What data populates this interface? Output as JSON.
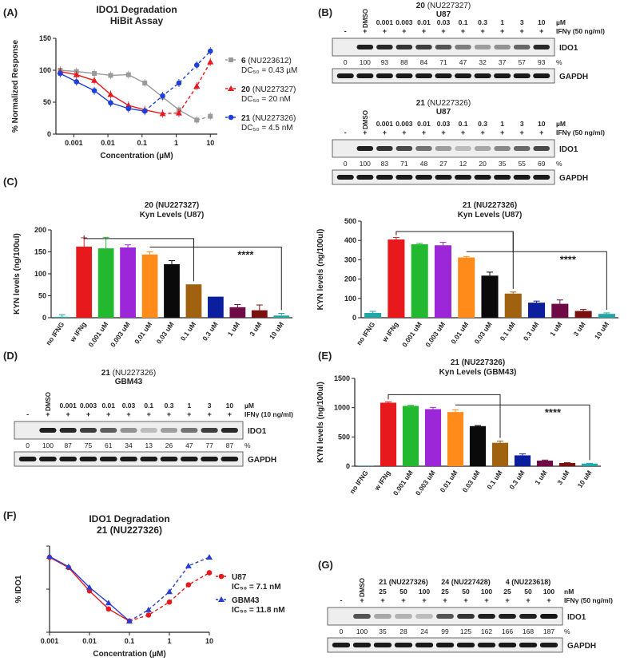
{
  "panel_labels": {
    "A": "(A)",
    "B": "(B)",
    "C": "(C)",
    "D": "(D)",
    "E": "(E)",
    "F": "(F)",
    "G": "(G)"
  },
  "colors": {
    "red": "#e8191d",
    "green": "#22b830",
    "purple": "#9c27d8",
    "orange": "#ff8c1a",
    "black": "#0a0a0a",
    "brown": "#a0620f",
    "navy": "#0b1f9e",
    "maroon": "#6e0a45",
    "darkred": "#7b1010",
    "teal": "#22a6a6",
    "grey": "#9a9a9a",
    "blue": "#1f3fd6",
    "tri_blue": "#2a3fd0",
    "red_num": "#e02020"
  },
  "chart_data": [
    {
      "id": "A",
      "type": "line",
      "title": "IDO1 Degradation",
      "subtitle": "HiBit Assay",
      "xlabel": "Concentration (µM)",
      "ylabel": "% Normalized Response",
      "xscale": "log",
      "xlim": [
        0.0003,
        16
      ],
      "ylim": [
        0,
        150
      ],
      "xticks": [
        "0.001",
        "0.01",
        "0.1",
        "1",
        "10"
      ],
      "yticks": [
        "0",
        "50",
        "100",
        "150"
      ],
      "series": [
        {
          "name": "6",
          "code": "(NU223612)",
          "dc50": "DC₅₀ = 0.43 µM",
          "color": "#9a9a9a",
          "marker": "square",
          "x": [
            0.0004,
            0.0012,
            0.004,
            0.012,
            0.04,
            0.12,
            0.4,
            1.2,
            4,
            10
          ],
          "y": [
            100,
            98,
            95,
            92,
            93,
            80,
            58,
            38,
            22,
            28
          ]
        },
        {
          "name": "20",
          "code": "(NU227327)",
          "dc50": "DC₅₀ = 20 nM",
          "color": "#e8191d",
          "marker": "triangle",
          "x": [
            0.0004,
            0.0012,
            0.004,
            0.012,
            0.04,
            0.12,
            0.4,
            1.2,
            4,
            10
          ],
          "y": [
            98,
            93,
            84,
            62,
            45,
            38,
            32,
            33,
            75,
            113
          ]
        },
        {
          "name": "21",
          "code": "(NU227326)",
          "dc50": "DC₅₀ = 4.5 nM",
          "color": "#1f3fd6",
          "marker": "circle",
          "x": [
            0.0004,
            0.0012,
            0.004,
            0.012,
            0.04,
            0.12,
            0.4,
            1.2,
            4,
            10
          ],
          "y": [
            95,
            82,
            68,
            49,
            40,
            36,
            60,
            80,
            108,
            130
          ]
        }
      ]
    },
    {
      "id": "C1",
      "type": "bar",
      "title": "20 (NU227327)",
      "subtitle": "Kyn Levels (U87)",
      "ylabel": "KYN levels (ng/100ul)",
      "ylim": [
        0,
        200
      ],
      "yticks": [
        "0",
        "50",
        "100",
        "150",
        "200"
      ],
      "categories": [
        "no IFNG",
        "w IFNg",
        "0.001 uM",
        "0.003 uM",
        "0.01 uM",
        "0.03 uM",
        "0.1 uM",
        "0.3 uM",
        "1 uM",
        "3 uM",
        "10 uM"
      ],
      "values": [
        2,
        162,
        158,
        160,
        144,
        122,
        76,
        48,
        24,
        17,
        5
      ],
      "errors": [
        5,
        20,
        25,
        6,
        6,
        8,
        0,
        0,
        6,
        12,
        5
      ],
      "significance": "****"
    },
    {
      "id": "C2",
      "type": "bar",
      "title": "21 (NU227326)",
      "subtitle": "Kyn Levels (U87)",
      "ylabel": "KYN levels (ng/100ul)",
      "ylim": [
        0,
        500
      ],
      "yticks": [
        "0",
        "100",
        "200",
        "300",
        "400",
        "500"
      ],
      "categories": [
        "no IFNG",
        "w IFNg",
        "0.001 uM",
        "0.003 uM",
        "0.01 uM",
        "0.03 uM",
        "0.1 uM",
        "0.3 uM",
        "1 uM",
        "3 uM",
        "10 uM"
      ],
      "values": [
        25,
        405,
        380,
        375,
        312,
        218,
        125,
        78,
        72,
        35,
        20
      ],
      "errors": [
        8,
        10,
        5,
        15,
        5,
        18,
        8,
        8,
        20,
        8,
        5
      ],
      "significance": "****"
    },
    {
      "id": "E",
      "type": "bar",
      "title": "21 (NU227326)",
      "subtitle": "Kyn Levels (GBM43)",
      "ylabel": "KYN levels (ng/100ul)",
      "ylim": [
        0,
        1500
      ],
      "yticks": [
        "0",
        "500",
        "1000",
        "1500"
      ],
      "categories": [
        "no IFNG",
        "w IFNg",
        "0.001 uM",
        "0.003 uM",
        "0.01 uM",
        "0.03 uM",
        "0.1 uM",
        "0.3 uM",
        "1 uM",
        "3 uM",
        "10 uM"
      ],
      "values": [
        5,
        1085,
        1030,
        975,
        925,
        685,
        400,
        185,
        95,
        55,
        45
      ],
      "errors": [
        0,
        15,
        10,
        30,
        40,
        10,
        30,
        25,
        10,
        5,
        5
      ],
      "significance": "****"
    },
    {
      "id": "F",
      "type": "line",
      "title": "IDO1 Degradation",
      "subtitle": "21 (NU227326)",
      "xlabel": "Concentration (µM)",
      "ylabel": "% IDO1",
      "xscale": "log",
      "xlim": [
        0.001,
        10
      ],
      "ylim": [
        0,
        100
      ],
      "xticks": [
        "0.001",
        "0.01",
        "0.1",
        "1",
        "10"
      ],
      "series": [
        {
          "name": "U87",
          "ic50": "IC₅₀ = 7.1 nM",
          "color": "#e8191d",
          "marker": "circle",
          "x": [
            0.001,
            0.003,
            0.01,
            0.03,
            0.1,
            0.3,
            1,
            3,
            10
          ],
          "y": [
            87,
            75,
            48,
            27,
            13,
            20,
            35,
            55,
            69
          ]
        },
        {
          "name": "GBM43",
          "ic50": "IC₅₀ = 11.8 nM",
          "color": "#2a3fd0",
          "marker": "triangle",
          "x": [
            0.001,
            0.003,
            0.01,
            0.03,
            0.1,
            0.3,
            1,
            3,
            10
          ],
          "y": [
            88,
            76,
            52,
            34,
            13,
            26,
            47,
            77,
            87
          ]
        }
      ]
    }
  ],
  "blots": {
    "B1": {
      "title_num": "20",
      "title_code": "(NU227327)",
      "cell": "U87",
      "dmso": "DMSO",
      "lanes": [
        "0.001",
        "0.003",
        "0.01",
        "0.03",
        "0.1",
        "0.3",
        "1",
        "3",
        "10"
      ],
      "unit": "µM",
      "ifn_label": "IFNγ (50 ng/ml)",
      "minus": "-",
      "plus": "+",
      "band": "IDO1",
      "loading": "GAPDH",
      "quant": [
        "0",
        "100",
        "93",
        "88",
        "84",
        "71",
        "47",
        "32",
        "37",
        "57",
        "93"
      ],
      "pct": "%",
      "highlight": 7,
      "intensity": [
        0,
        0.95,
        0.9,
        0.85,
        0.8,
        0.7,
        0.5,
        0.35,
        0.4,
        0.6,
        0.9
      ]
    },
    "B2": {
      "title_num": "21",
      "title_code": "(NU227326)",
      "cell": "U87",
      "dmso": "DMSO",
      "lanes": [
        "0.001",
        "0.003",
        "0.01",
        "0.03",
        "0.1",
        "0.3",
        "1",
        "3",
        "10"
      ],
      "unit": "µM",
      "ifn_label": "IFNγ (50 ng/ml)",
      "minus": "-",
      "plus": "+",
      "band": "IDO1",
      "loading": "GAPDH",
      "quant": [
        "0",
        "100",
        "83",
        "71",
        "48",
        "27",
        "12",
        "20",
        "35",
        "55",
        "69"
      ],
      "pct": "%",
      "highlight": 6,
      "intensity": [
        0,
        0.95,
        0.85,
        0.75,
        0.55,
        0.35,
        0.2,
        0.3,
        0.45,
        0.6,
        0.75
      ]
    },
    "D": {
      "title_num": "21",
      "title_code": "(NU227326)",
      "cell": "GBM43",
      "dmso": "DMSO",
      "lanes": [
        "0.001",
        "0.003",
        "0.01",
        "0.03",
        "0.1",
        "0.3",
        "1",
        "3",
        "10"
      ],
      "unit": "µM",
      "ifn_label": "IFNγ (10 ng/ml)",
      "minus": "-",
      "plus": "+",
      "band": "IDO1",
      "loading": "GAPDH",
      "quant": [
        "0",
        "100",
        "87",
        "75",
        "61",
        "34",
        "13",
        "26",
        "47",
        "77",
        "87"
      ],
      "pct": "%",
      "highlight": 6,
      "intensity": [
        0,
        0.95,
        0.9,
        0.8,
        0.65,
        0.4,
        0.2,
        0.35,
        0.55,
        0.8,
        0.9
      ]
    },
    "G": {
      "dmso": "DMSO",
      "groups": [
        "21 (NU227326)",
        "24 (NU227428)",
        "4 (NU223618)"
      ],
      "lanes": [
        "25",
        "50",
        "100",
        "25",
        "50",
        "100",
        "25",
        "50",
        "100"
      ],
      "unit": "nM",
      "ifn_label": "IFNγ (50 ng/ml)",
      "minus": "-",
      "plus": "+",
      "band": "IDO1",
      "loading": "GAPDH",
      "quant": [
        "0",
        "100",
        "35",
        "28",
        "24",
        "99",
        "125",
        "162",
        "166",
        "168",
        "187"
      ],
      "pct": "%",
      "highlight": -1,
      "intensity": [
        0,
        0.7,
        0.3,
        0.25,
        0.2,
        0.7,
        0.85,
        0.95,
        0.95,
        0.95,
        1.0
      ]
    }
  }
}
